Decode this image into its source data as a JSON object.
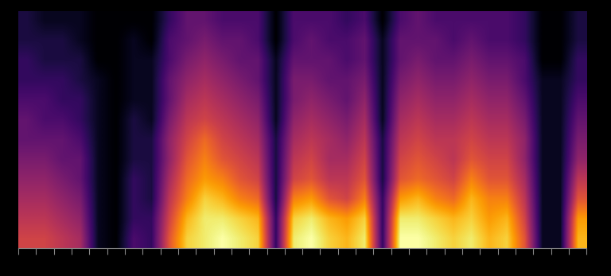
{
  "chart_data": {
    "type": "heatmap",
    "tick_labels": false,
    "cells": [
      [
        0.55,
        0.55,
        0.5,
        0.45,
        0.1,
        0.05,
        0.25,
        0.2,
        0.6,
        0.85,
        0.9,
        0.95,
        0.9,
        0.85,
        0.2,
        0.9,
        0.95,
        0.85,
        0.8,
        0.9,
        0.2,
        0.95,
        0.95,
        0.9,
        0.85,
        0.9,
        0.8,
        0.85,
        0.6,
        0.1,
        0.1,
        0.8
      ],
      [
        0.5,
        0.5,
        0.45,
        0.4,
        0.1,
        0.05,
        0.2,
        0.2,
        0.55,
        0.8,
        0.9,
        0.9,
        0.85,
        0.8,
        0.2,
        0.85,
        0.9,
        0.8,
        0.75,
        0.85,
        0.2,
        0.9,
        0.9,
        0.85,
        0.8,
        0.85,
        0.75,
        0.8,
        0.55,
        0.1,
        0.1,
        0.75
      ],
      [
        0.45,
        0.45,
        0.4,
        0.35,
        0.1,
        0.05,
        0.2,
        0.15,
        0.5,
        0.7,
        0.85,
        0.8,
        0.7,
        0.65,
        0.15,
        0.7,
        0.75,
        0.6,
        0.55,
        0.7,
        0.2,
        0.75,
        0.8,
        0.7,
        0.65,
        0.8,
        0.7,
        0.7,
        0.5,
        0.1,
        0.1,
        0.6
      ],
      [
        0.4,
        0.4,
        0.35,
        0.3,
        0.1,
        0.05,
        0.2,
        0.15,
        0.45,
        0.65,
        0.75,
        0.7,
        0.6,
        0.55,
        0.15,
        0.55,
        0.6,
        0.5,
        0.5,
        0.6,
        0.15,
        0.6,
        0.65,
        0.6,
        0.55,
        0.7,
        0.6,
        0.6,
        0.45,
        0.1,
        0.1,
        0.5
      ],
      [
        0.35,
        0.35,
        0.3,
        0.3,
        0.1,
        0.05,
        0.15,
        0.15,
        0.4,
        0.6,
        0.7,
        0.6,
        0.55,
        0.5,
        0.15,
        0.5,
        0.55,
        0.45,
        0.45,
        0.55,
        0.15,
        0.55,
        0.6,
        0.55,
        0.5,
        0.6,
        0.55,
        0.55,
        0.4,
        0.1,
        0.1,
        0.4
      ],
      [
        0.3,
        0.3,
        0.3,
        0.25,
        0.1,
        0.05,
        0.15,
        0.15,
        0.4,
        0.55,
        0.65,
        0.55,
        0.5,
        0.45,
        0.15,
        0.45,
        0.5,
        0.45,
        0.4,
        0.5,
        0.15,
        0.5,
        0.55,
        0.5,
        0.5,
        0.55,
        0.5,
        0.5,
        0.4,
        0.1,
        0.1,
        0.35
      ],
      [
        0.3,
        0.25,
        0.25,
        0.2,
        0.1,
        0.05,
        0.15,
        0.1,
        0.35,
        0.5,
        0.55,
        0.5,
        0.45,
        0.4,
        0.1,
        0.4,
        0.45,
        0.4,
        0.35,
        0.45,
        0.1,
        0.45,
        0.5,
        0.45,
        0.45,
        0.5,
        0.45,
        0.45,
        0.35,
        0.1,
        0.1,
        0.3
      ],
      [
        0.25,
        0.25,
        0.2,
        0.2,
        0.1,
        0.05,
        0.1,
        0.1,
        0.3,
        0.45,
        0.5,
        0.45,
        0.4,
        0.35,
        0.1,
        0.35,
        0.4,
        0.35,
        0.3,
        0.4,
        0.1,
        0.4,
        0.45,
        0.4,
        0.4,
        0.45,
        0.4,
        0.4,
        0.3,
        0.1,
        0.1,
        0.25
      ],
      [
        0.2,
        0.2,
        0.2,
        0.15,
        0.1,
        0.05,
        0.1,
        0.1,
        0.3,
        0.4,
        0.45,
        0.4,
        0.35,
        0.3,
        0.1,
        0.35,
        0.35,
        0.3,
        0.3,
        0.35,
        0.1,
        0.35,
        0.4,
        0.35,
        0.35,
        0.4,
        0.35,
        0.35,
        0.25,
        0.1,
        0.1,
        0.2
      ],
      [
        0.2,
        0.15,
        0.15,
        0.15,
        0.05,
        0.05,
        0.1,
        0.1,
        0.25,
        0.35,
        0.4,
        0.35,
        0.3,
        0.3,
        0.1,
        0.3,
        0.3,
        0.3,
        0.25,
        0.3,
        0.1,
        0.3,
        0.35,
        0.3,
        0.3,
        0.35,
        0.3,
        0.3,
        0.25,
        0.05,
        0.05,
        0.2
      ],
      [
        0.15,
        0.15,
        0.15,
        0.1,
        0.05,
        0.05,
        0.1,
        0.05,
        0.25,
        0.3,
        0.35,
        0.3,
        0.3,
        0.25,
        0.05,
        0.25,
        0.3,
        0.25,
        0.25,
        0.3,
        0.1,
        0.3,
        0.3,
        0.3,
        0.25,
        0.3,
        0.25,
        0.25,
        0.2,
        0.05,
        0.05,
        0.15
      ],
      [
        0.15,
        0.1,
        0.1,
        0.1,
        0.05,
        0.05,
        0.05,
        0.05,
        0.2,
        0.3,
        0.3,
        0.25,
        0.25,
        0.25,
        0.05,
        0.25,
        0.25,
        0.25,
        0.2,
        0.25,
        0.05,
        0.25,
        0.3,
        0.25,
        0.25,
        0.25,
        0.25,
        0.25,
        0.2,
        0.05,
        0.05,
        0.15
      ]
    ]
  }
}
